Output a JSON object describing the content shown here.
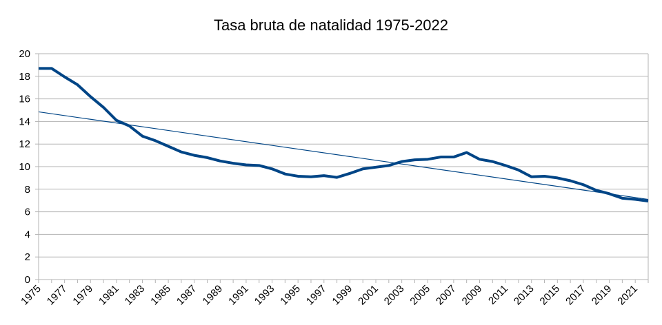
{
  "chart_data": {
    "type": "line",
    "title": "Tasa bruta de natalidad 1975-2022",
    "xlabel": "",
    "ylabel": "",
    "ylim": [
      0,
      20
    ],
    "yticks": [
      0,
      2,
      4,
      6,
      8,
      10,
      12,
      14,
      16,
      18,
      20
    ],
    "xtick_labels": [
      "1975",
      "1977",
      "1979",
      "1981",
      "1983",
      "1985",
      "1987",
      "1989",
      "1991",
      "1993",
      "1995",
      "1997",
      "1999",
      "2001",
      "2003",
      "2005",
      "2007",
      "2009",
      "2011",
      "2013",
      "2015",
      "2017",
      "2019",
      "2021"
    ],
    "grid": true,
    "legend": "none",
    "x": [
      1975,
      1976,
      1977,
      1978,
      1979,
      1980,
      1981,
      1982,
      1983,
      1984,
      1985,
      1986,
      1987,
      1988,
      1989,
      1990,
      1991,
      1992,
      1993,
      1994,
      1995,
      1996,
      1997,
      1998,
      1999,
      2000,
      2001,
      2002,
      2003,
      2004,
      2005,
      2006,
      2007,
      2008,
      2009,
      2010,
      2011,
      2012,
      2013,
      2014,
      2015,
      2016,
      2017,
      2018,
      2019,
      2020,
      2021,
      2022
    ],
    "series": [
      {
        "values": [
          18.7,
          18.7,
          17.95,
          17.25,
          16.2,
          15.25,
          14.1,
          13.6,
          12.7,
          12.3,
          11.8,
          11.3,
          11.0,
          10.8,
          10.5,
          10.3,
          10.15,
          10.1,
          9.8,
          9.35,
          9.15,
          9.1,
          9.2,
          9.05,
          9.4,
          9.8,
          9.95,
          10.1,
          10.45,
          10.6,
          10.65,
          10.85,
          10.85,
          11.25,
          10.65,
          10.45,
          10.1,
          9.7,
          9.1,
          9.15,
          9.0,
          8.75,
          8.4,
          7.9,
          7.6,
          7.2,
          7.1,
          6.95
        ],
        "color": "#004586"
      }
    ],
    "trendline": {
      "type": "linear",
      "start": [
        1975,
        14.85
      ],
      "end": [
        2022,
        7.1
      ],
      "color": "#004586"
    }
  }
}
